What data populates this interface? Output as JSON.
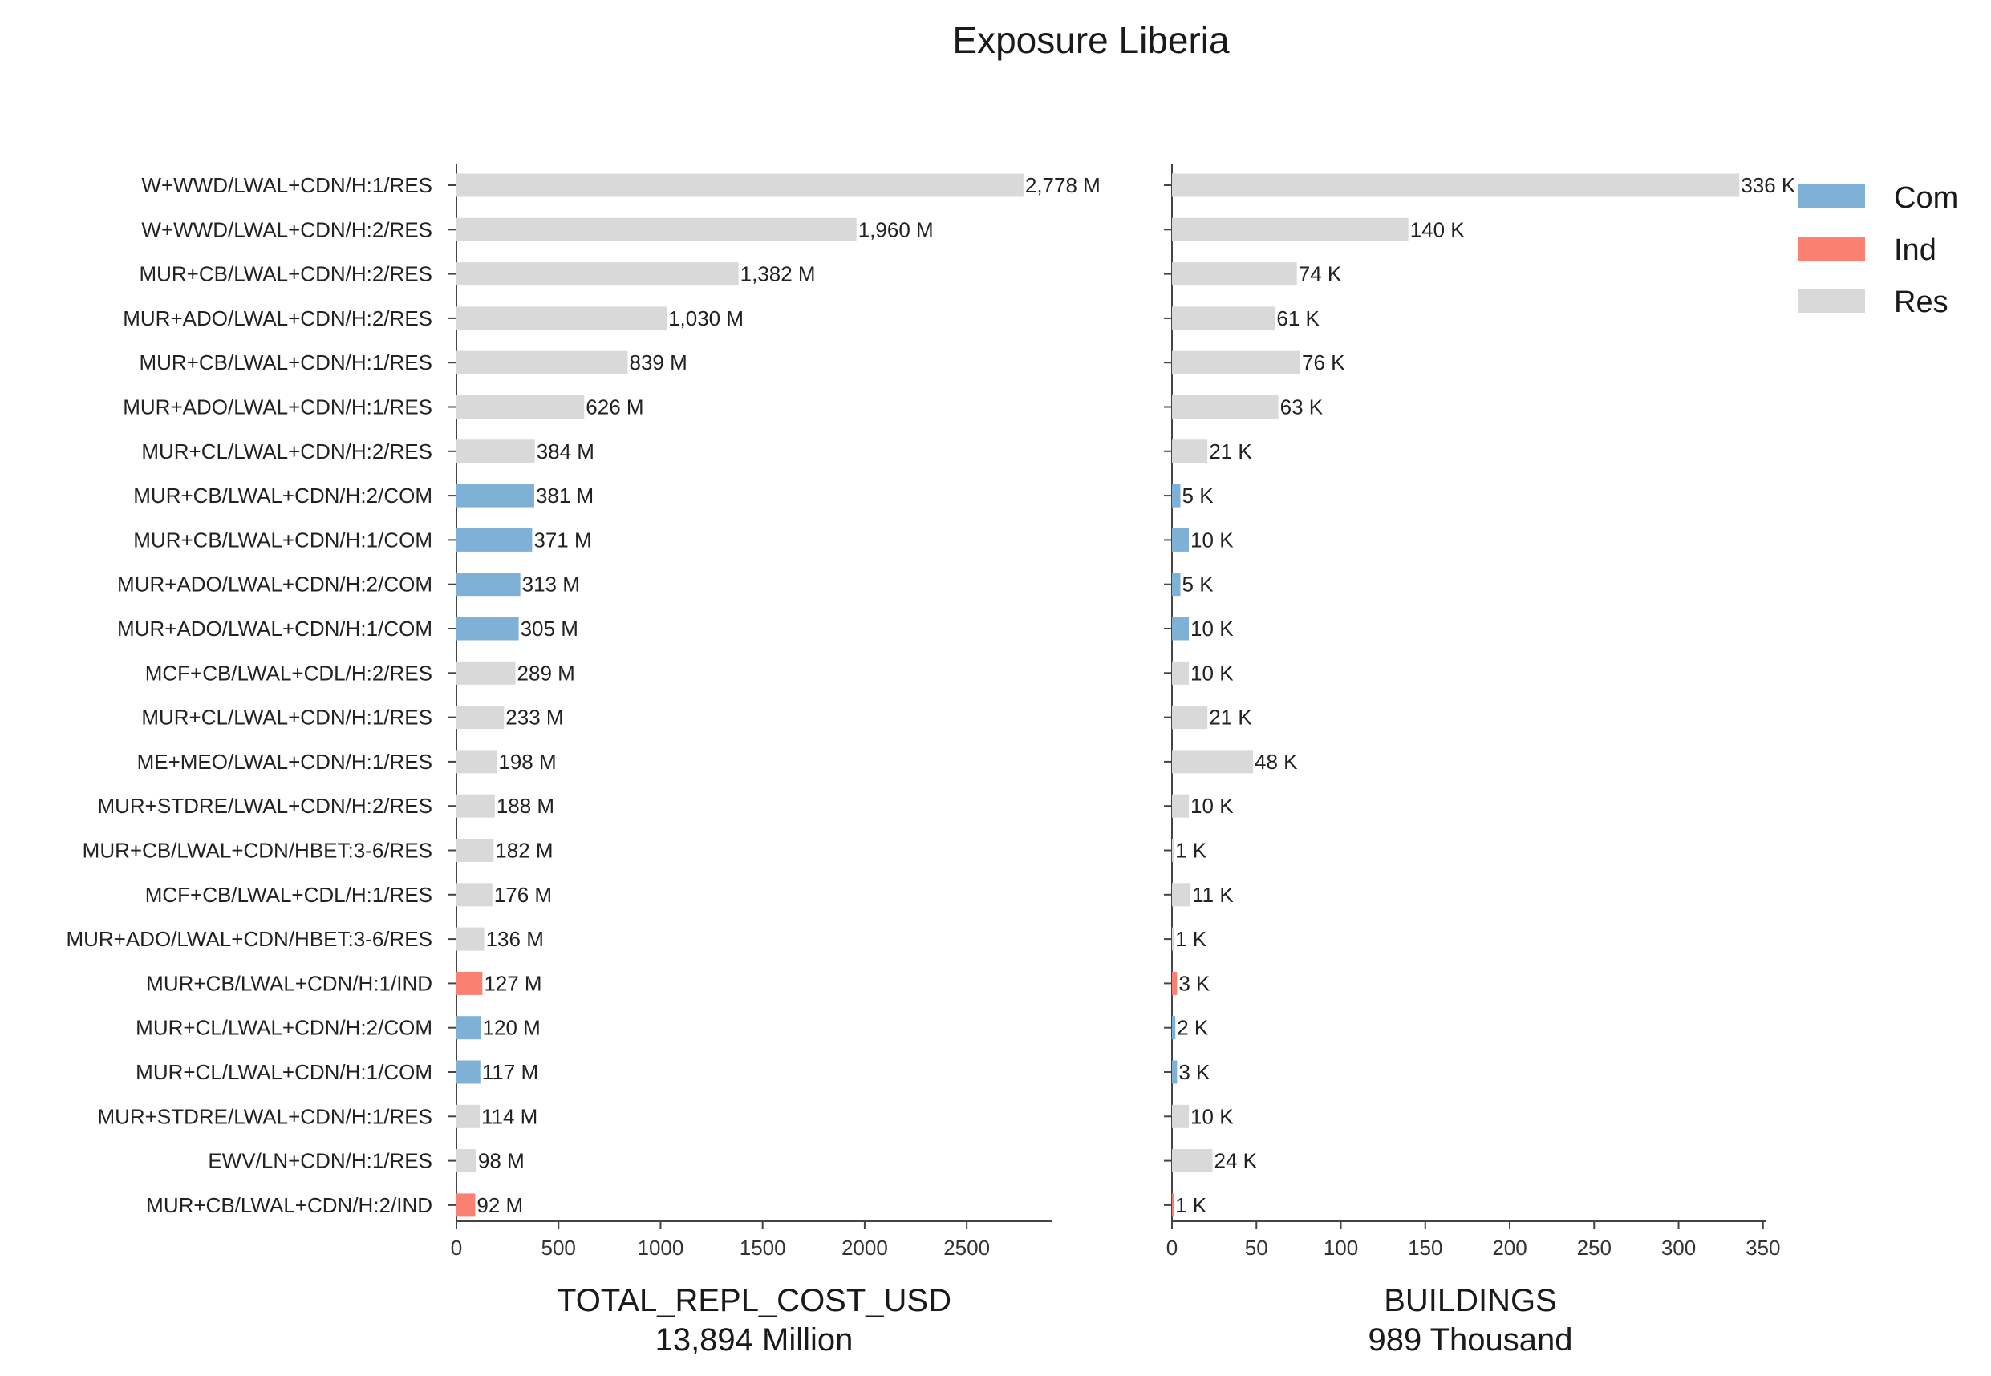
{
  "chart_data": {
    "type": "bar",
    "orientation": "horizontal",
    "title": "Exposure Liberia",
    "categories": [
      "W+WWD/LWAL+CDN/H:1/RES",
      "W+WWD/LWAL+CDN/H:2/RES",
      "MUR+CB/LWAL+CDN/H:2/RES",
      "MUR+ADO/LWAL+CDN/H:2/RES",
      "MUR+CB/LWAL+CDN/H:1/RES",
      "MUR+ADO/LWAL+CDN/H:1/RES",
      "MUR+CL/LWAL+CDN/H:2/RES",
      "MUR+CB/LWAL+CDN/H:2/COM",
      "MUR+CB/LWAL+CDN/H:1/COM",
      "MUR+ADO/LWAL+CDN/H:2/COM",
      "MUR+ADO/LWAL+CDN/H:1/COM",
      "MCF+CB/LWAL+CDL/H:2/RES",
      "MUR+CL/LWAL+CDN/H:1/RES",
      "ME+MEO/LWAL+CDN/H:1/RES",
      "MUR+STDRE/LWAL+CDN/H:2/RES",
      "MUR+CB/LWAL+CDN/HBET:3-6/RES",
      "MCF+CB/LWAL+CDL/H:1/RES",
      "MUR+ADO/LWAL+CDN/HBET:3-6/RES",
      "MUR+CB/LWAL+CDN/H:1/IND",
      "MUR+CL/LWAL+CDN/H:2/COM",
      "MUR+CL/LWAL+CDN/H:1/COM",
      "MUR+STDRE/LWAL+CDN/H:1/RES",
      "EWV/LN+CDN/H:1/RES",
      "MUR+CB/LWAL+CDN/H:2/IND"
    ],
    "occupancy": [
      "Res",
      "Res",
      "Res",
      "Res",
      "Res",
      "Res",
      "Res",
      "Com",
      "Com",
      "Com",
      "Com",
      "Res",
      "Res",
      "Res",
      "Res",
      "Res",
      "Res",
      "Res",
      "Ind",
      "Com",
      "Com",
      "Res",
      "Res",
      "Ind"
    ],
    "legend": {
      "position": "top-right",
      "entries": [
        {
          "name": "Com",
          "color": "#7fb0d5"
        },
        {
          "name": "Ind",
          "color": "#fa8072"
        },
        {
          "name": "Res",
          "color": "#d9d9d9"
        }
      ]
    },
    "panels": [
      {
        "xlabel": "TOTAL_REPL_COST_USD",
        "subtitle": "13,894 Million",
        "xlim": [
          0,
          2920
        ],
        "ticks": [
          0,
          500,
          1000,
          1500,
          2000,
          2500
        ],
        "values": [
          2778,
          1960,
          1382,
          1030,
          839,
          626,
          384,
          381,
          371,
          313,
          305,
          289,
          233,
          198,
          188,
          182,
          176,
          136,
          127,
          120,
          117,
          114,
          98,
          92
        ],
        "labels": [
          "2,778 M",
          "1,960 M",
          "1,382 M",
          "1,030 M",
          "839 M",
          "626 M",
          "384 M",
          "381 M",
          "371 M",
          "313 M",
          "305 M",
          "289 M",
          "233 M",
          "198 M",
          "188 M",
          "182 M",
          "176 M",
          "136 M",
          "127 M",
          "120 M",
          "117 M",
          "114 M",
          "98 M",
          "92 M"
        ]
      },
      {
        "xlabel": "BUILDINGS",
        "subtitle": "989 Thousand",
        "xlim": [
          0,
          352
        ],
        "ticks": [
          0,
          50,
          100,
          150,
          200,
          250,
          300,
          350
        ],
        "values": [
          336,
          140,
          74,
          61,
          76,
          63,
          21,
          5,
          10,
          5,
          10,
          10,
          21,
          48,
          10,
          1,
          11,
          1,
          3,
          2,
          3,
          10,
          24,
          1
        ],
        "labels": [
          "336 K",
          "140 K",
          "74 K",
          "61 K",
          "76 K",
          "63 K",
          "21 K",
          "5 K",
          "10 K",
          "5 K",
          "10 K",
          "10 K",
          "21 K",
          "48 K",
          "10 K",
          "1 K",
          "11 K",
          "1 K",
          "3 K",
          "2 K",
          "3 K",
          "10 K",
          "24 K",
          "1 K"
        ]
      }
    ]
  }
}
